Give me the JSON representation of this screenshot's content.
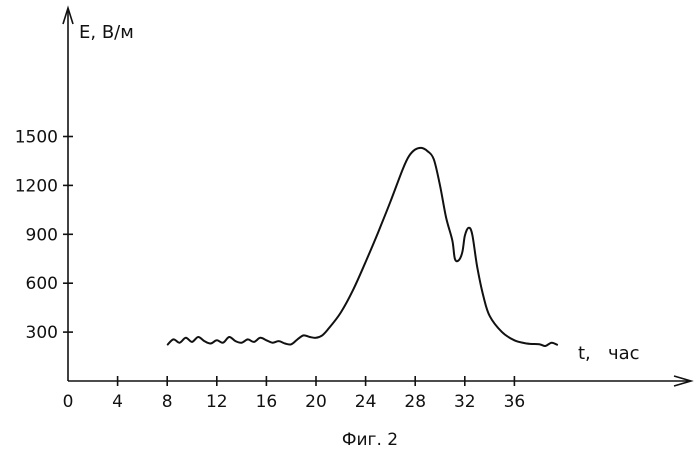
{
  "chart_data": {
    "type": "line",
    "title": "",
    "xlabel": "t,   час",
    "ylabel": "E, В/м",
    "caption": "Фиг. 2",
    "xlim": [
      0,
      42
    ],
    "ylim": [
      0,
      1800
    ],
    "xticks": [
      0,
      4,
      8,
      12,
      16,
      20,
      24,
      28,
      32,
      36
    ],
    "yticks": [
      300,
      600,
      900,
      1200,
      1500
    ],
    "grid": false,
    "series": [
      {
        "x": [
          8.0,
          8.5,
          9.0,
          9.5,
          10.0,
          10.5,
          11.0,
          11.5,
          12.0,
          12.5,
          13.0,
          13.5,
          14.0,
          14.5,
          15.0,
          15.5,
          16.0,
          16.5,
          17.0,
          17.5,
          18.0,
          18.5,
          19.0,
          19.5,
          20.0,
          20.5,
          21.0,
          22.0,
          23.0,
          24.0,
          25.0,
          26.0,
          27.0,
          27.5,
          28.0,
          28.5,
          29.0,
          29.5,
          30.0,
          30.5,
          31.0,
          31.2,
          31.5,
          31.8,
          32.0,
          32.3,
          32.6,
          33.0,
          33.5,
          34.0,
          35.0,
          36.0,
          37.0,
          38.0,
          38.5,
          39.0,
          39.5
        ],
        "y": [
          220,
          255,
          235,
          265,
          240,
          270,
          245,
          230,
          250,
          235,
          270,
          245,
          235,
          255,
          240,
          265,
          250,
          235,
          245,
          230,
          225,
          255,
          280,
          270,
          265,
          280,
          320,
          420,
          560,
          730,
          910,
          1100,
          1300,
          1380,
          1420,
          1430,
          1410,
          1360,
          1200,
          1000,
          860,
          750,
          740,
          790,
          890,
          940,
          900,
          700,
          520,
          400,
          300,
          250,
          230,
          225,
          215,
          235,
          220
        ]
      }
    ]
  }
}
